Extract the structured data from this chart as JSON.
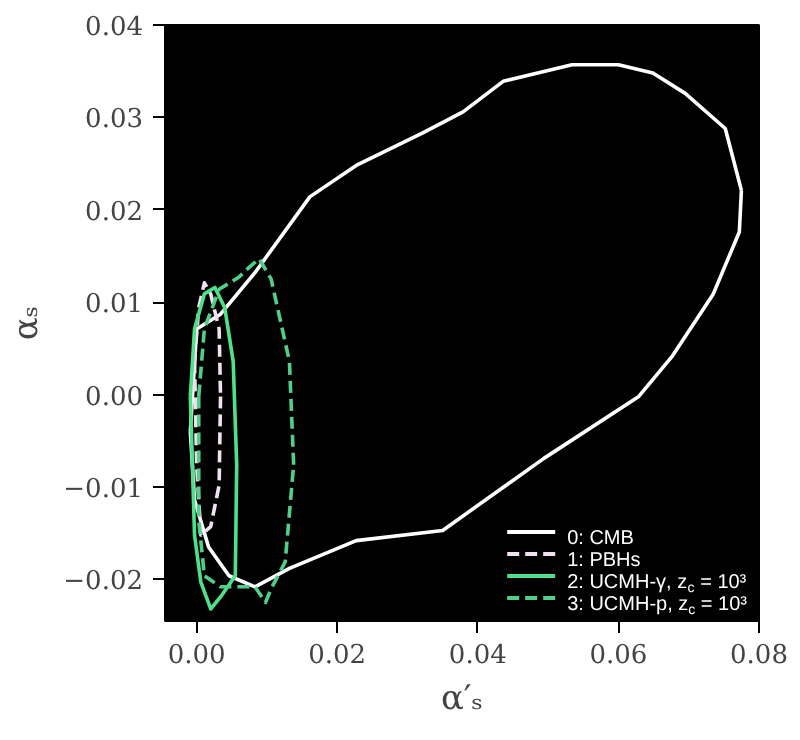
{
  "chart_data": {
    "type": "line",
    "xlabel": "α′ₛ",
    "ylabel": "αₛ",
    "xlim": [
      -0.0045,
      0.08
    ],
    "ylim": [
      -0.0245,
      0.04
    ],
    "xticks": [
      {
        "value": 0,
        "label": "0.00"
      },
      {
        "value": 0.02,
        "label": "0.02"
      },
      {
        "value": 0.04,
        "label": "0.04"
      },
      {
        "value": 0.06,
        "label": "0.06"
      },
      {
        "value": 0.08,
        "label": "0.08"
      }
    ],
    "yticks": [
      {
        "value": -0.02,
        "label": "−0.02"
      },
      {
        "value": -0.01,
        "label": "−0.01"
      },
      {
        "value": 0,
        "label": "0.00"
      },
      {
        "value": 0.01,
        "label": "0.01"
      },
      {
        "value": 0.02,
        "label": "0.02"
      },
      {
        "value": 0.03,
        "label": "0.03"
      },
      {
        "value": 0.04,
        "label": "0.04"
      }
    ],
    "grid": false,
    "legend": "bottom right",
    "marker": "none",
    "series": [
      {
        "name": "0: CMB",
        "color": "#ffffff",
        "line_style": "solid",
        "x": [
          -0.0009,
          0,
          0.0034,
          0.0083,
          0.0161,
          0.0227,
          0.0321,
          0.0379,
          0.0436,
          0.0534,
          0.06,
          0.0649,
          0.0695,
          0.0752,
          0.0775,
          null,
          -0.0009,
          -0.0003,
          0.0017,
          0.0046,
          0.0083,
          0.0132,
          0.0227,
          0.035,
          0.0494,
          0.0629,
          0.0677,
          0.0735,
          0.0772,
          0.0775
        ],
        "values": [
          -0.004,
          0.0071,
          0.0087,
          0.0132,
          0.0214,
          0.0248,
          0.0283,
          0.0306,
          0.0339,
          0.0357,
          0.0357,
          0.0348,
          0.0326,
          0.0288,
          0.0221,
          null,
          -0.004,
          -0.0114,
          -0.0165,
          -0.0196,
          -0.0208,
          -0.0188,
          -0.0158,
          -0.0147,
          -0.0069,
          -0.0002,
          0.0042,
          0.0109,
          0.0176,
          0.0221
        ]
      },
      {
        "name": "1: PBHs",
        "color": "#f0e0f0",
        "line_style": "dashed",
        "x": [
          -0.0003,
          0.0003,
          0.0011,
          0.002,
          0.0032,
          0.0034,
          null,
          -0.0003,
          0,
          0.0006,
          0.002,
          0.0032,
          0.0034
        ],
        "values": [
          0.0036,
          0.0094,
          0.0121,
          0.0109,
          0.0071,
          -0.0002,
          null,
          0.0036,
          -0.0076,
          -0.0152,
          -0.0143,
          -0.0098,
          -0.0002
        ]
      },
      {
        "name": "2: UCMH-γ, z$_{c}$ = 10³",
        "color": "#4fe08a",
        "line_style": "solid",
        "x": [
          -0.0009,
          -0.0003,
          0.0011,
          0.0026,
          0.004,
          0.0052,
          0.0057,
          null,
          -0.0009,
          -0.0003,
          0.0006,
          0.002,
          0.0034,
          0.0055,
          0.0057
        ],
        "values": [
          -0.0002,
          0.0071,
          0.0109,
          0.0116,
          0.0094,
          0.0036,
          -0.0076,
          null,
          -0.0002,
          -0.0152,
          -0.0203,
          -0.0232,
          -0.0219,
          -0.0196,
          -0.0076
        ]
      },
      {
        "name": "3: UCMH-p, z$_{c}$ = 10³",
        "color": "#4fcf8a",
        "line_style": "dashed",
        "x": [
          0.0003,
          0.0011,
          0.0032,
          0.006,
          0.0075,
          0.0089,
          0.0106,
          0.0132,
          0.0138,
          null,
          0.0003,
          0.0003,
          0.0011,
          0.0034,
          0.0083,
          0.0098,
          0.0106,
          0.0126,
          0.0138
        ],
        "values": [
          -0.0002,
          0.0071,
          0.0114,
          0.0127,
          0.0138,
          0.0147,
          0.0125,
          0.0036,
          -0.0076,
          null,
          -0.0002,
          -0.0136,
          -0.0196,
          -0.0208,
          -0.0208,
          -0.0225,
          -0.021,
          -0.0181,
          -0.0076
        ]
      }
    ]
  }
}
